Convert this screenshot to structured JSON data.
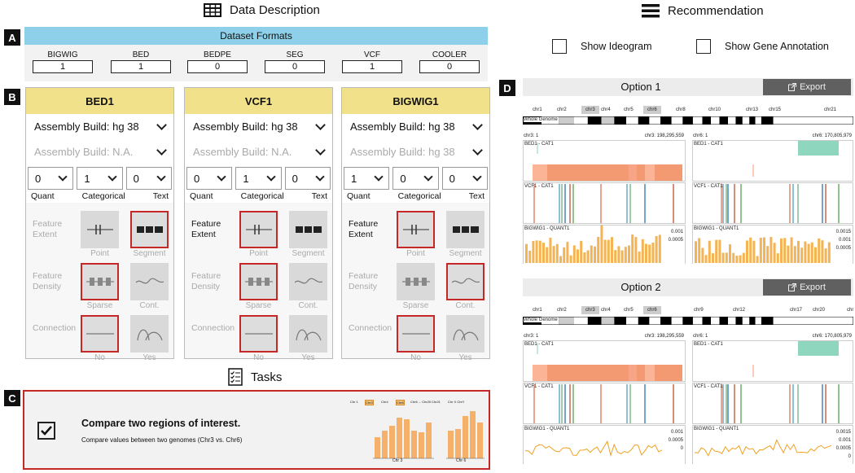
{
  "headers": {
    "data_description": "Data Description",
    "recommendation": "Recommendation",
    "tasks": "Tasks"
  },
  "section_tags": {
    "a": "A",
    "b": "B",
    "c": "C",
    "d": "D"
  },
  "dataset_formats": {
    "title": "Dataset Formats",
    "items": [
      {
        "name": "BIGWIG",
        "count": "1"
      },
      {
        "name": "BED",
        "count": "1"
      },
      {
        "name": "BEDPE",
        "count": "0"
      },
      {
        "name": "SEG",
        "count": "0"
      },
      {
        "name": "VCF",
        "count": "1"
      },
      {
        "name": "COOLER",
        "count": "0"
      }
    ]
  },
  "cards": [
    {
      "title": "BED1",
      "assembly": "Assembly Build: hg 38",
      "assembly2": "Assembly Build: N.A.",
      "counts": [
        "0",
        "1",
        "0"
      ],
      "count_labels": [
        "Quant",
        "Categorical",
        "Text"
      ],
      "extent_label": "Feature\nExtent",
      "density_label": "Feature\nDensity",
      "connection_label": "Connection",
      "opts": {
        "point": "Point",
        "segment": "Segment",
        "sparse": "Sparse",
        "cont": "Cont.",
        "no": "No",
        "yes": "Yes"
      }
    },
    {
      "title": "VCF1",
      "assembly": "Assembly Build: hg 38",
      "assembly2": "Assembly Build: N.A.",
      "counts": [
        "0",
        "1",
        "0"
      ],
      "count_labels": [
        "Quant",
        "Categorical",
        "Text"
      ],
      "extent_label": "Feature\nExtent",
      "density_label": "Feature\nDensity",
      "connection_label": "Connection",
      "opts": {
        "point": "Point",
        "segment": "Segment",
        "sparse": "Sparse",
        "cont": "Cont.",
        "no": "No",
        "yes": "Yes"
      }
    },
    {
      "title": "BIGWIG1",
      "assembly": "Assembly Build: hg 38",
      "assembly2": "Assembly Build: hg 38",
      "counts": [
        "1",
        "0",
        "0"
      ],
      "count_labels": [
        "Quant",
        "Categorical",
        "Text"
      ],
      "extent_label": "Feature\nExtent",
      "density_label": "Feature\nDensity",
      "connection_label": "Connection",
      "opts": {
        "point": "Point",
        "segment": "Segment",
        "sparse": "Sparse",
        "cont": "Cont.",
        "no": "No",
        "yes": "Yes"
      }
    }
  ],
  "task": {
    "title": "Compare two regions of interest.",
    "desc": "Compare values between two genomes (Chr3 vs. Chr6)",
    "mini_labels": [
      "Chr 1",
      "Chr3",
      "Chr4",
      "Chr6",
      "Chr6 ... Chr20",
      "Chr21",
      "Chr X ChrY"
    ],
    "left_caption": "Chr 3",
    "right_caption": "Chr 6"
  },
  "options": {
    "show_ideogram": "Show Ideogram",
    "show_gene_annotation": "Show Gene Annotation"
  },
  "recommendations": [
    {
      "title": "Option 1",
      "export": "Export",
      "chroms": [
        "chr1",
        "chr2",
        "chr3",
        "chr4",
        "chr5",
        "chr6",
        "chr8",
        "chr10",
        "chr13",
        "chr15",
        "chr21"
      ],
      "whole_genome": "Whole Genome",
      "left_range": [
        "chr3: 1",
        "chr3: 198,295,559"
      ],
      "right_range": [
        "chr6: 1",
        "chr6: 170,805,979"
      ],
      "tracks": [
        "BED1 - CAT1",
        "VCF1 - CAT1",
        "BIGWIG1 - QUANT1"
      ],
      "left_ticks": [
        "0.001",
        "0.0005"
      ],
      "right_ticks": [
        "0.0015",
        "0.001",
        "0.0005"
      ]
    },
    {
      "title": "Option 2",
      "export": "Export",
      "chroms": [
        "chr1",
        "chr2",
        "chr3",
        "chr4",
        "chr5",
        "chr6",
        "chr9",
        "chr12",
        "chr17",
        "chr20",
        "chr"
      ],
      "whole_genome": "Whole Genome",
      "left_range": [
        "chr3: 1",
        "chr3: 198,295,559"
      ],
      "right_range": [
        "chr6: 1",
        "chr6: 170,805,979"
      ],
      "tracks": [
        "BED1 - CAT1",
        "VCF1 - CAT1",
        "BIGWIG1 - QUANT1"
      ],
      "left_ticks": [
        "0.001",
        "0.0005",
        "0"
      ],
      "right_ticks": [
        "0.0015",
        "0.001",
        "0.0005",
        "0"
      ]
    }
  ],
  "colors": {
    "accent_red": "#c62828",
    "bed_orange": "#f28a66",
    "bar_orange": "#f5b454",
    "line_orange": "#f0a020",
    "teal": "#8fd6bf",
    "header_blue": "#8ecfe9",
    "card_yellow": "#f1e18a"
  }
}
